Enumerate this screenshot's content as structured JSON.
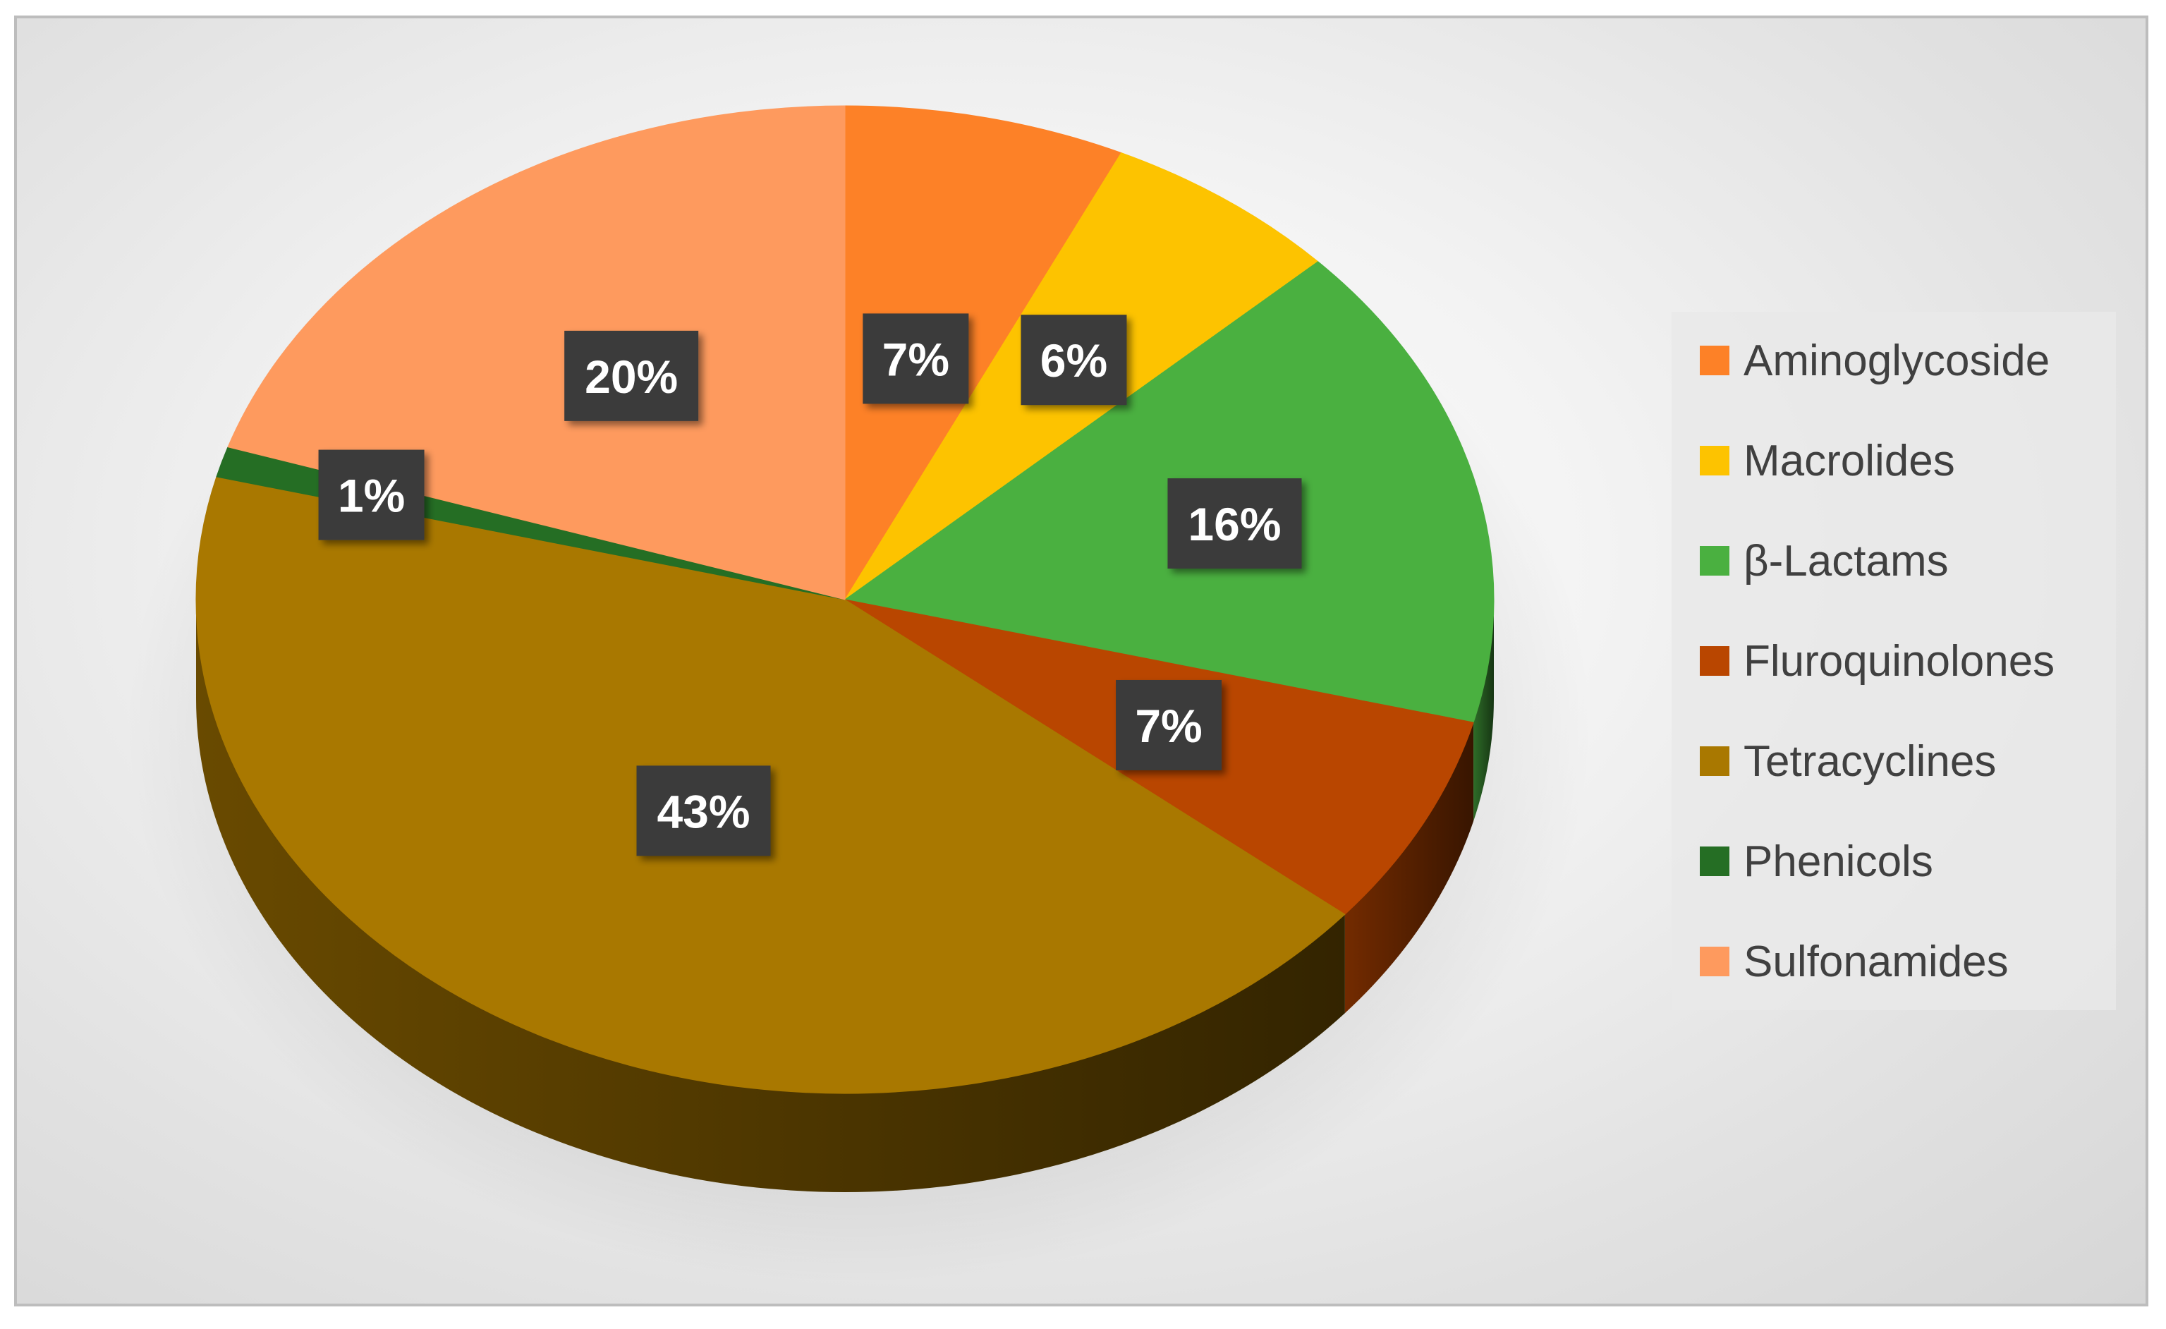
{
  "chart_data": {
    "type": "pie",
    "style": "3d",
    "legend_position": "right",
    "slices": [
      {
        "label": "Aminoglycoside",
        "value": 7,
        "percent_label": "7%",
        "color": "#FD8127"
      },
      {
        "label": "Macrolides",
        "value": 6,
        "percent_label": "6%",
        "color": "#FDC300"
      },
      {
        "label": "β-Lactams",
        "value": 16,
        "percent_label": "16%",
        "color": "#4AB040"
      },
      {
        "label": "Fluroquinolones",
        "value": 7,
        "percent_label": "7%",
        "color": "#B94600"
      },
      {
        "label": "Tetracyclines",
        "value": 43,
        "percent_label": "43%",
        "color": "#A97800"
      },
      {
        "label": "Phenicols",
        "value": 1,
        "percent_label": "1%",
        "color": "#256E24"
      },
      {
        "label": "Sulfonamides",
        "value": 20,
        "percent_label": "20%",
        "color": "#FE9A5E"
      }
    ]
  }
}
